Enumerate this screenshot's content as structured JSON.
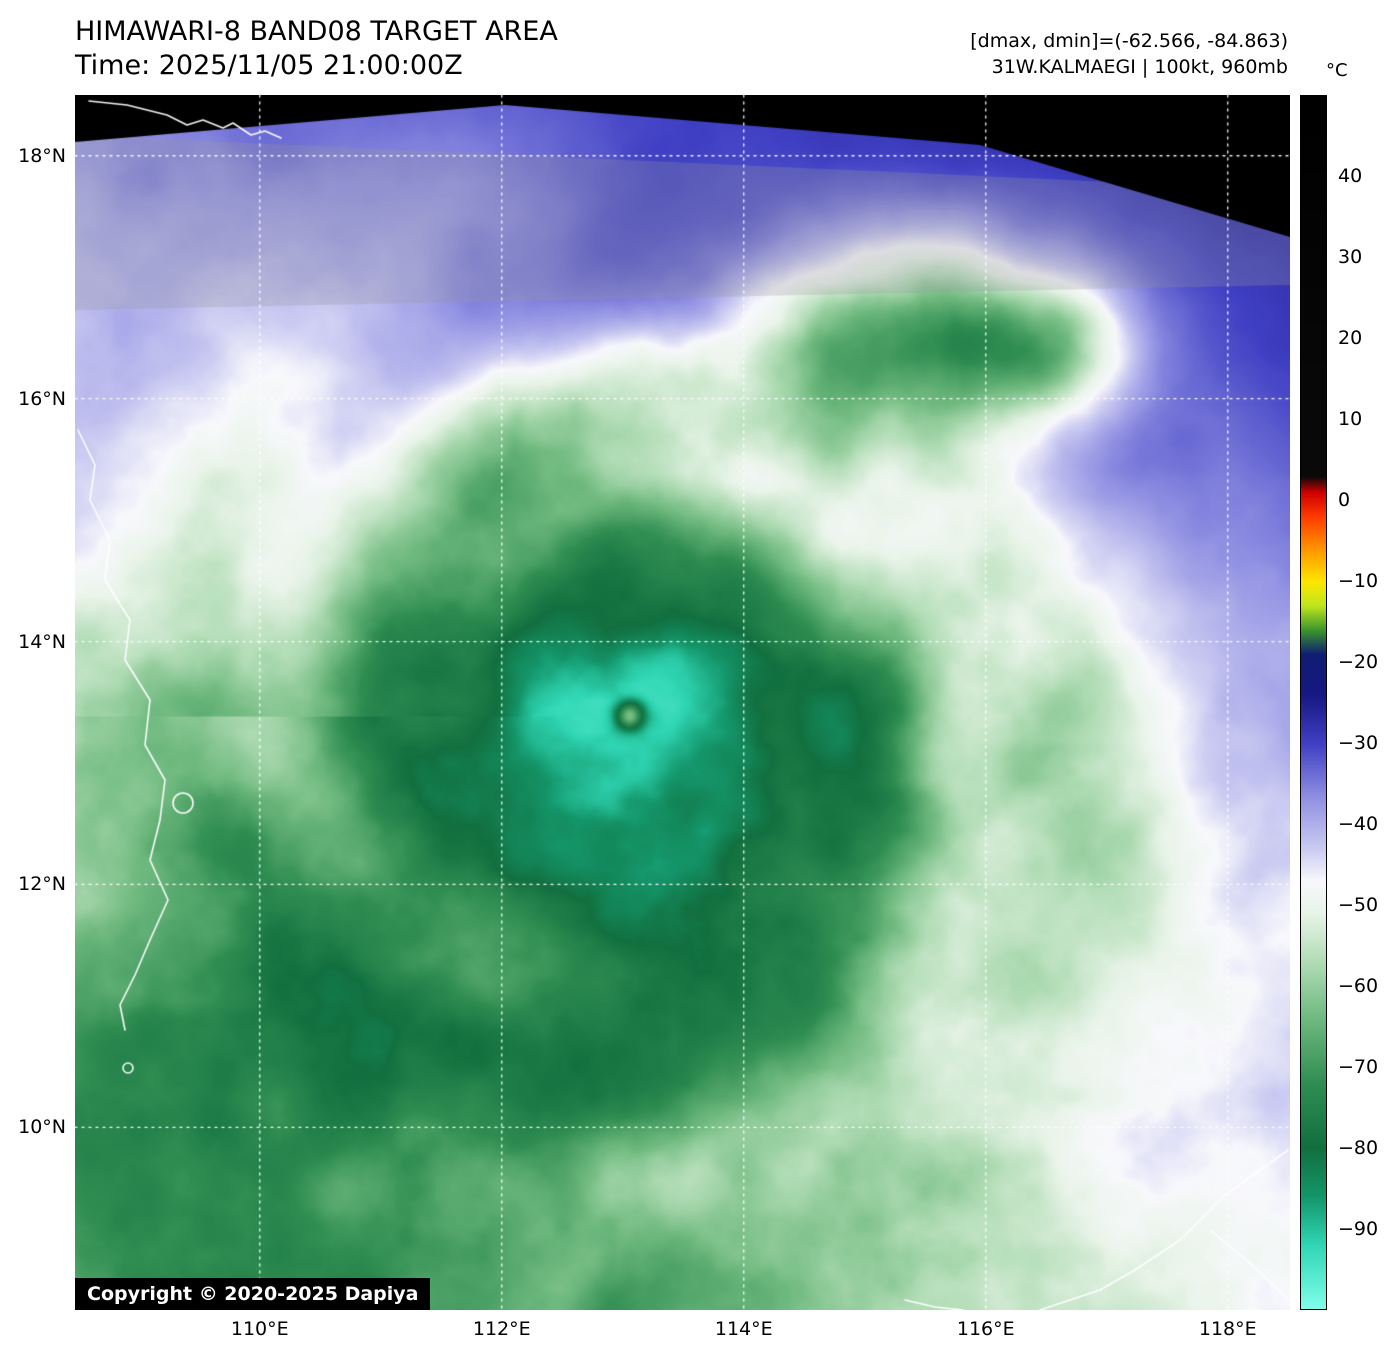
{
  "header": {
    "title": "HIMAWARI-8 BAND08 TARGET AREA",
    "time_line": "Time: 2025/11/05 21:00:00Z",
    "stats_line": "[dmax, dmin]=(-62.566, -84.863)",
    "storm_line": "31W.KALMAEGI | 100kt, 960mb"
  },
  "colorbar": {
    "unit_label": "°C",
    "ticks": [
      40,
      30,
      20,
      10,
      0,
      -10,
      -20,
      -30,
      -40,
      -50,
      -60,
      -70,
      -80,
      -90
    ]
  },
  "map": {
    "lat_ticks": [
      {
        "label": "18°N",
        "lat": 18
      },
      {
        "label": "16°N",
        "lat": 16
      },
      {
        "label": "14°N",
        "lat": 14
      },
      {
        "label": "12°N",
        "lat": 12
      },
      {
        "label": "10°N",
        "lat": 10
      }
    ],
    "lon_ticks": [
      {
        "label": "110°E",
        "lon": 110
      },
      {
        "label": "112°E",
        "lon": 112
      },
      {
        "label": "114°E",
        "lon": 114
      },
      {
        "label": "116°E",
        "lon": 116
      },
      {
        "label": "118°E",
        "lon": 118
      }
    ],
    "copyright": "Copyright © 2020-2025 Dapiya"
  }
}
